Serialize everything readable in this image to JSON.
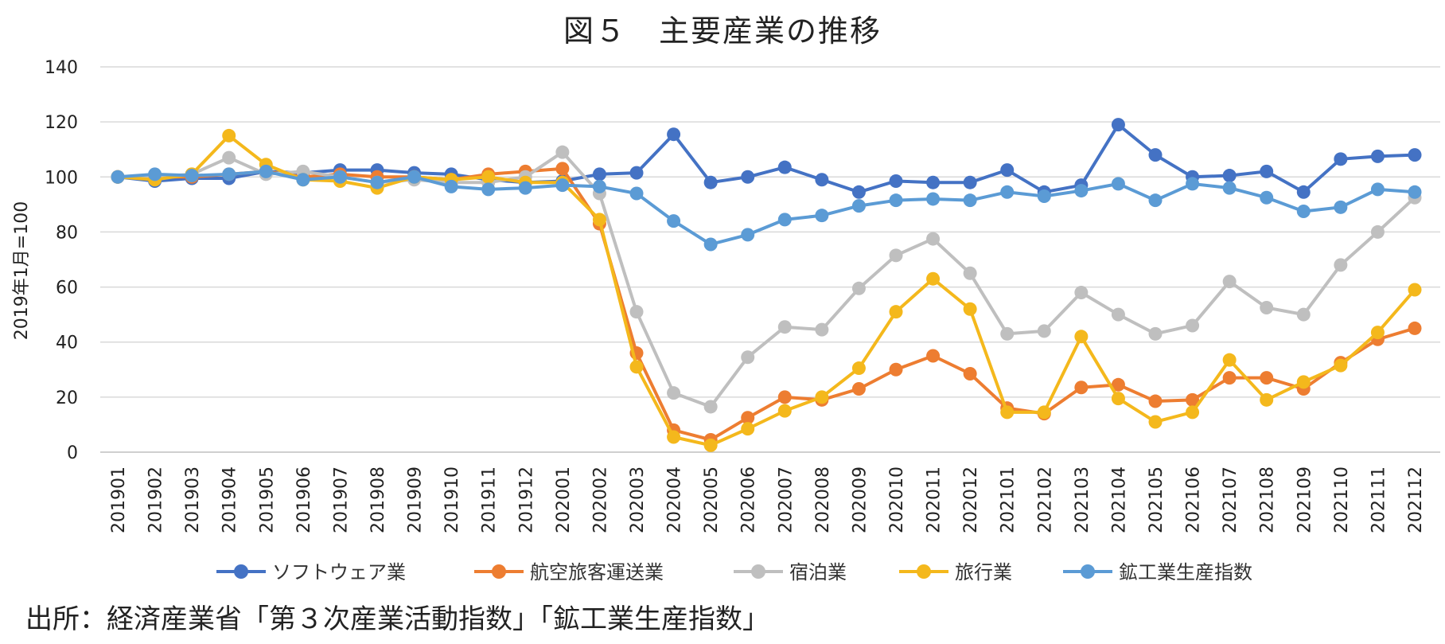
{
  "chart_data": {
    "type": "line",
    "title": "図５　主要産業の推移",
    "ylabel": "2019年1月=100",
    "xlabel": "",
    "ylim": [
      0,
      140
    ],
    "yticks": [
      0,
      20,
      40,
      60,
      80,
      100,
      120,
      140
    ],
    "grid": true,
    "legend_position": "bottom",
    "categories": [
      "201901",
      "201902",
      "201903",
      "201904",
      "201905",
      "201906",
      "201907",
      "201908",
      "201909",
      "201910",
      "201911",
      "201912",
      "202001",
      "202002",
      "202003",
      "202004",
      "202005",
      "202006",
      "202007",
      "202008",
      "202009",
      "202010",
      "202011",
      "202012",
      "202101",
      "202102",
      "202103",
      "202104",
      "202105",
      "202106",
      "202107",
      "202108",
      "202109",
      "202110",
      "202111",
      "202112"
    ],
    "series": [
      {
        "name": "ソフトウェア業",
        "color": "#4472C4",
        "values": [
          100,
          98.5,
          99.5,
          99.5,
          102,
          101.5,
          102.5,
          102.5,
          101.5,
          101,
          99,
          98,
          98.5,
          101,
          101.5,
          115.5,
          98,
          100,
          103.5,
          99,
          94.5,
          98.5,
          98,
          98,
          102.5,
          94.5,
          97,
          119,
          108,
          100,
          100.5,
          102,
          94.5,
          106.5,
          107.5,
          108
        ]
      },
      {
        "name": "航空旅客運送業",
        "color": "#ED7D31",
        "values": [
          100,
          100,
          100,
          101,
          102,
          100,
          101,
          100,
          100,
          99,
          101,
          102,
          103,
          83,
          36,
          8,
          4.5,
          12.5,
          20,
          19,
          23,
          30,
          35,
          28.5,
          16,
          14,
          23.5,
          24.5,
          18.5,
          19,
          27,
          27,
          23,
          32.5,
          41,
          45
        ]
      },
      {
        "name": "宿泊業",
        "color": "#BFBFBF",
        "values": [
          100,
          100,
          101,
          107,
          101,
          102,
          100,
          98,
          99,
          98,
          98,
          100,
          109,
          94,
          51,
          21.5,
          16.5,
          34.5,
          45.5,
          44.5,
          59.5,
          71.5,
          77.5,
          65,
          43,
          44,
          58,
          50,
          43,
          46,
          62,
          52.5,
          50,
          68,
          80,
          92.5
        ]
      },
      {
        "name": "旅行業",
        "color": "#F4B81C",
        "values": [
          100,
          99,
          101,
          115,
          104.5,
          99,
          98.5,
          96,
          100,
          99,
          100,
          98,
          98,
          84.5,
          31,
          5.5,
          2.5,
          8.5,
          15,
          20,
          30.5,
          51,
          63,
          52,
          14.5,
          14.5,
          42,
          19.5,
          11,
          14.5,
          33.5,
          19,
          25.5,
          31.5,
          43.5,
          59
        ]
      },
      {
        "name": "鉱工業生産指数",
        "color": "#5B9BD5",
        "values": [
          100,
          101,
          100.5,
          101,
          102,
          99,
          100,
          98,
          100,
          96.5,
          95.5,
          96,
          97,
          96.5,
          94,
          84,
          75.5,
          79,
          84.5,
          86,
          89.5,
          91.5,
          92,
          91.5,
          94.5,
          93,
          95,
          97.5,
          91.5,
          97.5,
          96,
          92.5,
          87.5,
          89,
          95.5,
          94.5
        ]
      }
    ]
  },
  "source": "出所：経済産業省「第３次産業活動指数」「鉱工業生産指数」"
}
